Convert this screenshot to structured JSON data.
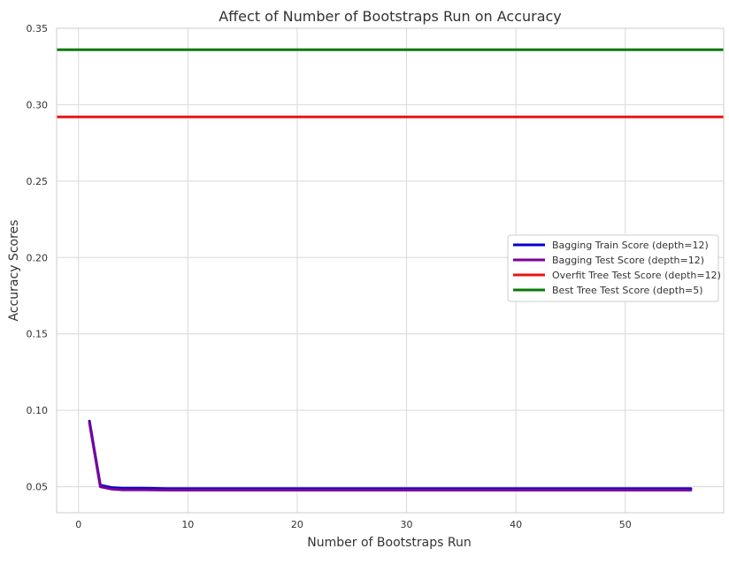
{
  "chart_data": {
    "type": "line",
    "title": "Affect of Number of Bootstraps Run on Accuracy",
    "xlabel": "Number of Bootstraps Run",
    "ylabel": "Accuracy Scores",
    "xlim": [
      -2,
      59
    ],
    "ylim": [
      0.033,
      0.35
    ],
    "xticks": [
      0,
      10,
      20,
      30,
      40,
      50
    ],
    "yticks": [
      0.05,
      0.1,
      0.15,
      0.2,
      0.25,
      0.3,
      0.35
    ],
    "xtick_labels": [
      "0",
      "10",
      "20",
      "30",
      "40",
      "50"
    ],
    "ytick_labels": [
      "0.05",
      "0.10",
      "0.15",
      "0.20",
      "0.25",
      "0.30",
      "0.35"
    ],
    "grid": true,
    "legend_position": "right",
    "series": [
      {
        "name": "Bagging Train Score (depth=12)",
        "color": "#0000cc",
        "kind": "line",
        "x": [
          1,
          2,
          3,
          4,
          5,
          6,
          8,
          10,
          12,
          15,
          20,
          25,
          30,
          35,
          40,
          45,
          50,
          55,
          56
        ],
        "y": [
          0.093,
          0.051,
          0.0495,
          0.049,
          0.049,
          0.049,
          0.0488,
          0.0488,
          0.0488,
          0.0488,
          0.0488,
          0.0488,
          0.0488,
          0.0488,
          0.0488,
          0.0488,
          0.0488,
          0.0488,
          0.0488
        ]
      },
      {
        "name": "Bagging Test Score (depth=12)",
        "color": "#7a0099",
        "kind": "line",
        "x": [
          1,
          2,
          3,
          4,
          5,
          6,
          8,
          10,
          12,
          15,
          20,
          25,
          30,
          35,
          40,
          45,
          50,
          55,
          56
        ],
        "y": [
          0.092,
          0.05,
          0.0485,
          0.048,
          0.048,
          0.048,
          0.0478,
          0.0478,
          0.0478,
          0.0478,
          0.0478,
          0.0478,
          0.0478,
          0.0478,
          0.0478,
          0.0478,
          0.0478,
          0.0478,
          0.0478
        ]
      },
      {
        "name": "Overfit Tree Test Score (depth=12)",
        "color": "#e81414",
        "kind": "hline",
        "y": 0.292
      },
      {
        "name": "Best Tree Test Score (depth=5)",
        "color": "#0a7a0a",
        "kind": "hline",
        "y": 0.336
      }
    ]
  }
}
